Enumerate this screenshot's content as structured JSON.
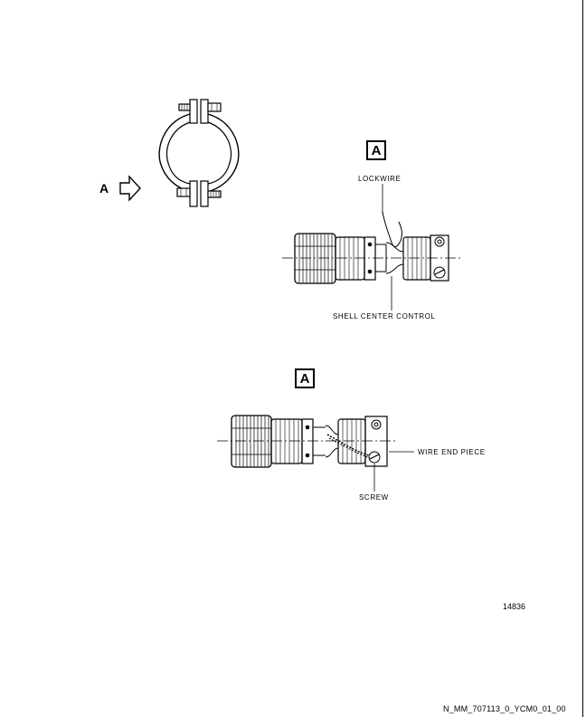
{
  "view_arrow": {
    "letter": "A"
  },
  "detail_top": {
    "tag": "A",
    "lockwire_label": "LOCKWIRE",
    "shell_label": "SHELL CENTER CONTROL"
  },
  "detail_bottom": {
    "tag": "A",
    "wire_end_label": "WIRE END PIECE",
    "screw_label": "SCREW"
  },
  "figure_number": "14836",
  "document_id": "N_MM_707113_0_YCM0_01_00"
}
